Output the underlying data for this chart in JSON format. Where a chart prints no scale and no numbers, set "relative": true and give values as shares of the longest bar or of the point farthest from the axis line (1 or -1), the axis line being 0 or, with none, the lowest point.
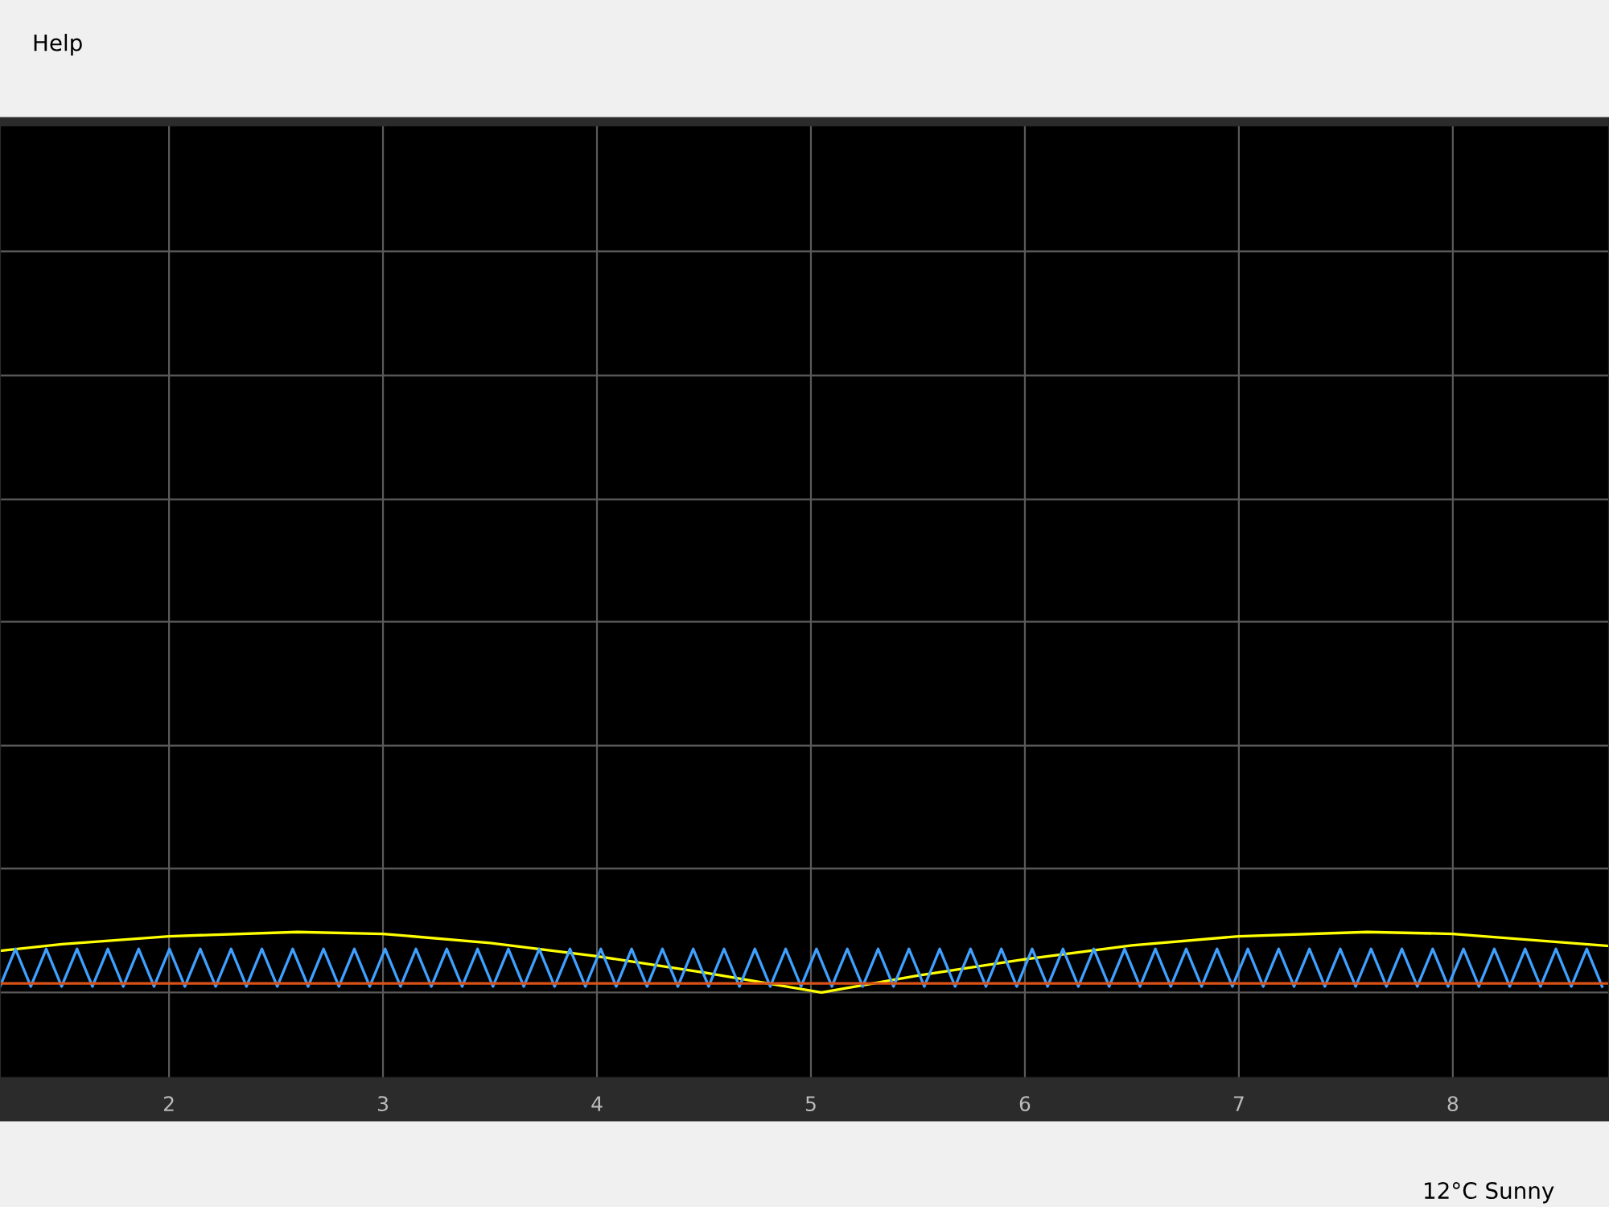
{
  "chart_data": {
    "type": "line",
    "relative": true,
    "grid": true,
    "xlim": [
      1.21,
      8.73
    ],
    "xticks": [
      2,
      3,
      4,
      5,
      6,
      7,
      8
    ],
    "tick_labels": "x",
    "annotations": [
      "Help",
      "12°C Sunny"
    ],
    "series": [
      {
        "color": "#ffff00",
        "x": [
          1.21,
          1.5,
          2.0,
          2.6,
          3.0,
          3.5,
          4.0,
          4.5,
          5.05,
          5.5,
          6.0,
          6.5,
          7.0,
          7.6,
          8.0,
          8.73
        ],
        "values": [
          0.69,
          0.8,
          0.93,
          1.0,
          0.97,
          0.82,
          0.6,
          0.33,
          0,
          0.28,
          0.55,
          0.78,
          0.93,
          1.0,
          0.97,
          0.77
        ]
      },
      {
        "color": "#3fa0ff",
        "x": [
          1.21,
          1.282,
          1.354,
          1.426,
          1.498,
          1.57,
          1.642,
          1.714,
          1.786,
          1.858,
          1.93,
          2.002,
          2.074,
          2.146,
          2.218,
          2.29,
          2.362,
          2.434,
          2.506,
          2.578,
          2.65,
          2.722,
          2.794,
          2.866,
          2.938,
          3.01,
          3.082,
          3.154,
          3.226,
          3.298,
          3.37,
          3.442,
          3.514,
          3.586,
          3.658,
          3.73,
          3.802,
          3.874,
          3.946,
          4.018,
          4.09,
          4.162,
          4.234,
          4.306,
          4.378,
          4.45,
          4.522,
          4.594,
          4.666,
          4.738,
          4.81,
          4.882,
          4.954,
          5.026,
          5.098,
          5.17,
          5.242,
          5.314,
          5.386,
          5.458,
          5.53,
          5.602,
          5.674,
          5.746,
          5.818,
          5.89,
          5.962,
          6.034,
          6.106,
          6.178,
          6.25,
          6.322,
          6.394,
          6.466,
          6.538,
          6.61,
          6.682,
          6.754,
          6.826,
          6.898,
          6.97,
          7.042,
          7.114,
          7.186,
          7.258,
          7.33,
          7.402,
          7.474,
          7.546,
          7.618,
          7.69,
          7.762,
          7.834,
          7.906,
          7.978,
          8.05,
          8.122,
          8.194,
          8.266,
          8.338,
          8.41,
          8.482,
          8.554,
          8.626,
          8.698
        ],
        "values": [
          0.1,
          0.72,
          0.1,
          0.72,
          0.1,
          0.72,
          0.1,
          0.72,
          0.1,
          0.72,
          0.1,
          0.72,
          0.1,
          0.72,
          0.1,
          0.72,
          0.1,
          0.72,
          0.1,
          0.72,
          0.1,
          0.72,
          0.1,
          0.72,
          0.1,
          0.72,
          0.1,
          0.72,
          0.1,
          0.72,
          0.1,
          0.72,
          0.1,
          0.72,
          0.1,
          0.72,
          0.1,
          0.72,
          0.1,
          0.72,
          0.1,
          0.72,
          0.1,
          0.72,
          0.1,
          0.72,
          0.1,
          0.72,
          0.1,
          0.72,
          0.1,
          0.72,
          0.1,
          0.72,
          0.1,
          0.72,
          0.1,
          0.72,
          0.1,
          0.72,
          0.1,
          0.72,
          0.1,
          0.72,
          0.1,
          0.72,
          0.1,
          0.72,
          0.1,
          0.72,
          0.1,
          0.72,
          0.1,
          0.72,
          0.1,
          0.72,
          0.1,
          0.72,
          0.1,
          0.72,
          0.1,
          0.72,
          0.1,
          0.72,
          0.1,
          0.72,
          0.1,
          0.72,
          0.1,
          0.72,
          0.1,
          0.72,
          0.1,
          0.72,
          0.1,
          0.72,
          0.1,
          0.72,
          0.1,
          0.72,
          0.1,
          0.72,
          0.1,
          0.72,
          0.1
        ]
      },
      {
        "color": "#d95319",
        "x": [
          1.21,
          3.0,
          5.0,
          7.0,
          8.73
        ],
        "values": [
          0.15,
          0.15,
          0.15,
          0.15,
          0.15
        ]
      }
    ]
  }
}
